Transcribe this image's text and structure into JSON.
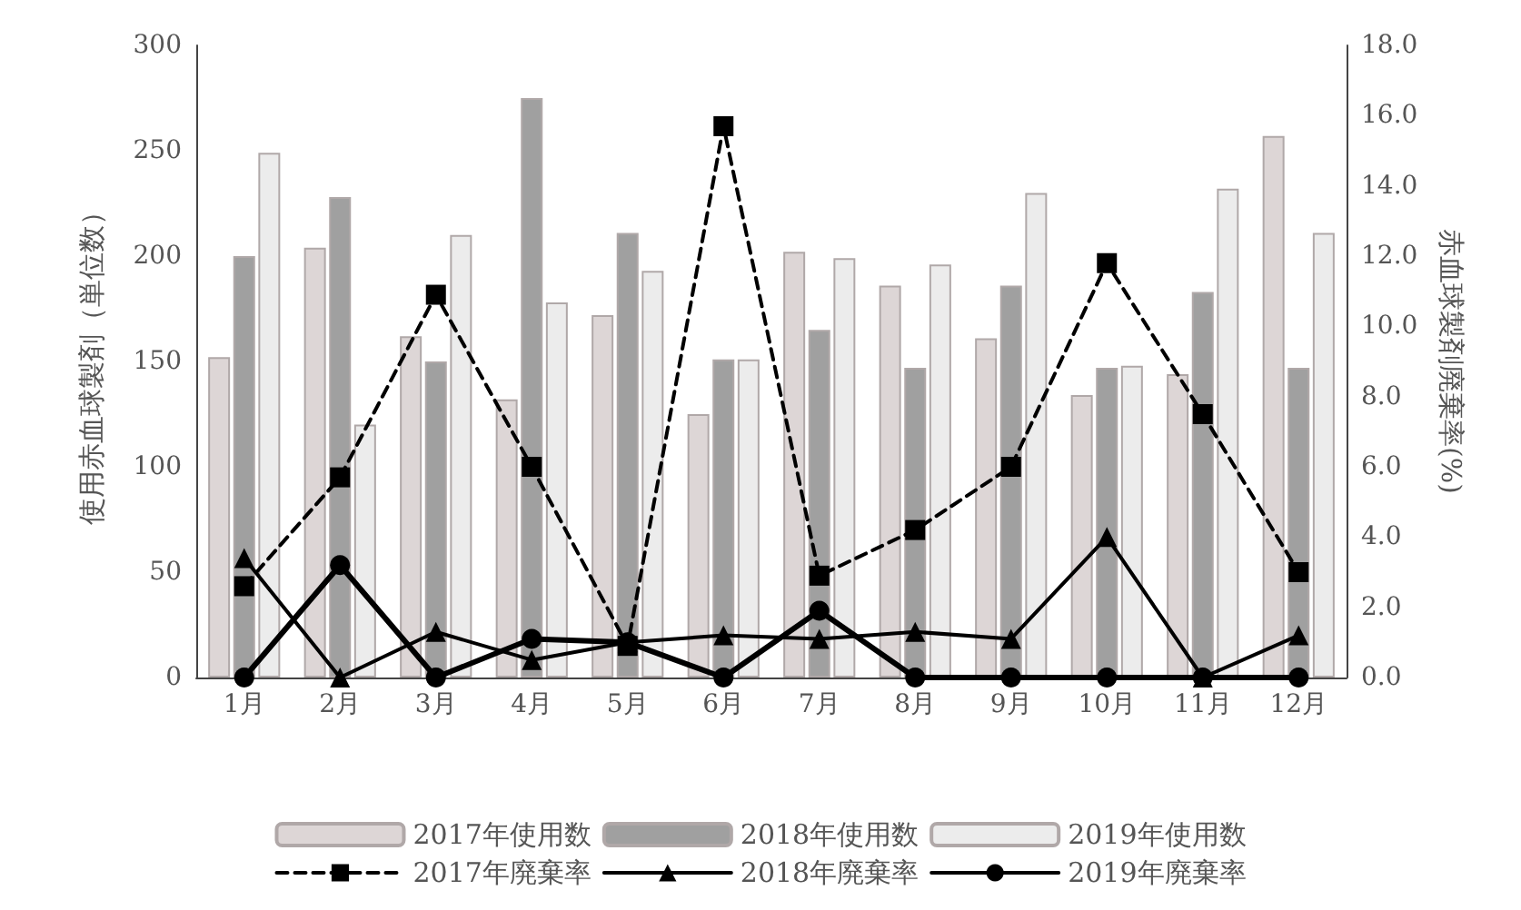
{
  "chart_data": {
    "type": "bar",
    "ylabel": "使用赤血球製剤（単位数）",
    "y2label": "赤血球製剤廃棄率(%)",
    "categories": [
      "1月",
      "2月",
      "3月",
      "4月",
      "5月",
      "6月",
      "7月",
      "8月",
      "9月",
      "10月",
      "11月",
      "12月"
    ],
    "series": [
      {
        "name": "2017年使用数",
        "color": "#ddd6d6",
        "values": [
          152,
          204,
          162,
          132,
          172,
          125,
          202,
          186,
          161,
          134,
          144,
          257
        ]
      },
      {
        "name": "2018年使用数",
        "color": "#a0a0a0",
        "values": [
          200,
          228,
          150,
          275,
          211,
          151,
          165,
          147,
          186,
          147,
          183,
          147
        ]
      },
      {
        "name": "2019年使用数",
        "color": "#ececec",
        "values": [
          249,
          120,
          210,
          178,
          193,
          151,
          199,
          196,
          230,
          148,
          232,
          211
        ]
      },
      {
        "name": "2017年廃棄率",
        "type": "line",
        "axis": "y2",
        "color": "#000000",
        "marker": "square",
        "line_style": "dashed",
        "values": [
          2.6,
          5.7,
          10.9,
          6.0,
          0.9,
          15.7,
          2.9,
          4.2,
          6.0,
          11.8,
          7.5,
          3.0
        ]
      },
      {
        "name": "2018年廃棄率",
        "type": "line",
        "axis": "y2",
        "color": "#000000",
        "marker": "triangle",
        "line_style": "solid",
        "values": [
          3.4,
          0,
          1.3,
          0.5,
          1.0,
          1.2,
          1.1,
          1.3,
          1.1,
          4.0,
          0,
          1.2
        ]
      },
      {
        "name": "2019年廃棄率",
        "type": "line",
        "axis": "y2",
        "color": "#000000",
        "marker": "circle",
        "line_style": "solid",
        "values": [
          0,
          3.2,
          0,
          1.1,
          1.0,
          0,
          1.9,
          0,
          0,
          0,
          0,
          0
        ]
      }
    ],
    "ylim": [
      0,
      300
    ],
    "yticks": [
      0,
      50,
      100,
      150,
      200,
      250,
      300
    ],
    "y2lim": [
      0,
      18
    ],
    "y2ticks": [
      {
        "value": 0,
        "label": "0.0"
      },
      {
        "value": 2,
        "label": "2.0"
      },
      {
        "value": 4,
        "label": "4.0"
      },
      {
        "value": 6,
        "label": "6.0"
      },
      {
        "value": 8,
        "label": "8.0"
      },
      {
        "value": 10,
        "label": "10.0"
      },
      {
        "value": 12,
        "label": "12.0"
      },
      {
        "value": 14,
        "label": "14.0"
      },
      {
        "value": 16,
        "label": "16.0"
      },
      {
        "value": 18,
        "label": "18.0"
      }
    ],
    "grid": false,
    "legend": "bottom"
  }
}
